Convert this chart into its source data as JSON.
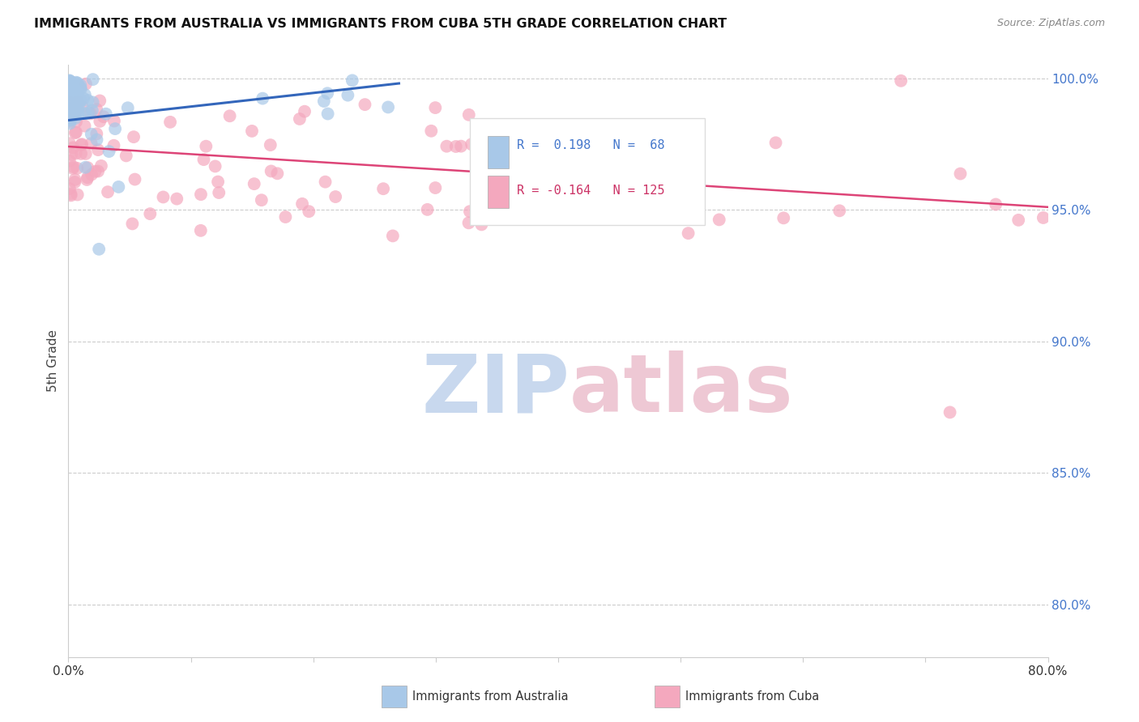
{
  "title": "IMMIGRANTS FROM AUSTRALIA VS IMMIGRANTS FROM CUBA 5TH GRADE CORRELATION CHART",
  "source": "Source: ZipAtlas.com",
  "ylabel": "5th Grade",
  "australia_R": 0.198,
  "australia_N": 68,
  "cuba_R": -0.164,
  "cuba_N": 125,
  "australia_color": "#a8c8e8",
  "cuba_color": "#f4a8be",
  "australia_line_color": "#3366bb",
  "cuba_line_color": "#dd4477",
  "watermark_zip_color": "#c8d8ee",
  "watermark_atlas_color": "#eec8d4",
  "background_color": "#ffffff",
  "x_min": 0.0,
  "x_max": 0.8,
  "y_min": 0.78,
  "y_max": 1.005,
  "y_ticks": [
    1.0,
    0.95,
    0.9,
    0.85,
    0.8
  ],
  "y_tick_labels": [
    "100.0%",
    "95.0%",
    "90.0%",
    "85.0%",
    "80.0%"
  ],
  "grid_color": "#cccccc",
  "axis_color": "#cccccc",
  "right_label_color": "#4477cc",
  "title_color": "#111111",
  "source_color": "#888888",
  "ylabel_color": "#444444"
}
